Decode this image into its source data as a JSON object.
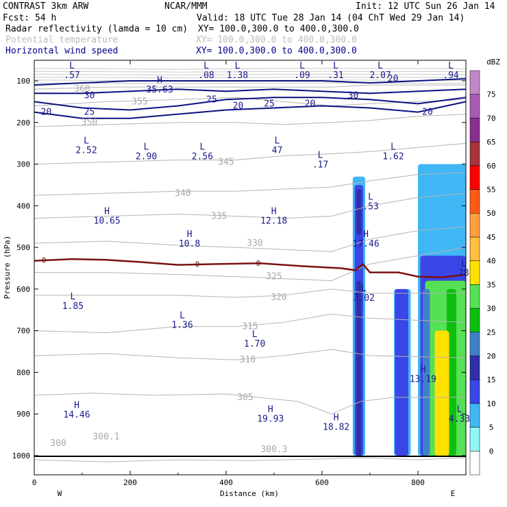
{
  "header": {
    "model": "CONTRAST  3km ARW",
    "org": "NCAR/MMM",
    "init": "Init: 12 UTC Sun 26 Jan 14",
    "fcst": "Fcst:   54 h",
    "valid": "Valid: 18 UTC Tue 28 Jan 14 (04 ChT Wed 29 Jan 14)",
    "fields": [
      {
        "name": "Radar reflectivity (lamda = 10 cm)",
        "xy": "XY= 100.0,300.0 to 400.0,300.0",
        "color": "#000000"
      },
      {
        "name": "Potential temperature",
        "xy": "XY= 100.0,300.0 to 400.0,300.0",
        "color": "#bbbbbb"
      },
      {
        "name": "Horizontal wind speed",
        "xy": "XY= 100.0,300.0 to 400.0,300.0",
        "color": "#00008b"
      }
    ]
  },
  "chart_data": {
    "type": "cross-section",
    "xlabel": "Distance (km)",
    "ylabel": "Pressure (hPa)",
    "xlim": [
      0,
      900
    ],
    "ylim": [
      1050,
      50
    ],
    "xticks": [
      0,
      200,
      400,
      600,
      800
    ],
    "yticks": [
      100,
      200,
      300,
      400,
      500,
      600,
      700,
      800,
      900,
      1000
    ],
    "x_end_labels": {
      "left": "W",
      "right": "E"
    },
    "colorbar": {
      "title": "dBZ",
      "levels": [
        0,
        5,
        10,
        15,
        20,
        25,
        30,
        35,
        40,
        45,
        50,
        55,
        60,
        65,
        70,
        75
      ],
      "colors": [
        "#ffffff",
        "#8ff7f7",
        "#41b6f5",
        "#3a46e5",
        "#2f2fa6",
        "#3f80c8",
        "#0cbf0c",
        "#55e055",
        "#ffe100",
        "#ffc040",
        "#ffa040",
        "#ff5a1a",
        "#ff0000",
        "#a8343c",
        "#8a2f90",
        "#a85ab2",
        "#bf88c8"
      ]
    },
    "theta_contours": [
      {
        "value": 300,
        "points": [
          [
            0,
            1010
          ],
          [
            150,
            1015
          ],
          [
            300,
            1010
          ],
          [
            450,
            1012
          ],
          [
            600,
            1008
          ],
          [
            690,
            1005
          ],
          [
            800,
            1010
          ],
          [
            900,
            1005
          ]
        ]
      },
      {
        "value": 305,
        "points": [
          [
            0,
            855
          ],
          [
            120,
            850
          ],
          [
            250,
            855
          ],
          [
            400,
            852
          ],
          [
            550,
            870
          ],
          [
            620,
            900
          ],
          [
            680,
            870
          ],
          [
            750,
            860
          ],
          [
            900,
            860
          ]
        ]
      },
      {
        "value": 310,
        "points": [
          [
            0,
            760
          ],
          [
            150,
            755
          ],
          [
            300,
            765
          ],
          [
            420,
            770
          ],
          [
            520,
            760
          ],
          [
            620,
            745
          ],
          [
            700,
            760
          ],
          [
            900,
            765
          ]
        ]
      },
      {
        "value": 315,
        "points": [
          [
            0,
            700
          ],
          [
            150,
            705
          ],
          [
            300,
            690
          ],
          [
            420,
            690
          ],
          [
            520,
            680
          ],
          [
            620,
            660
          ],
          [
            700,
            670
          ],
          [
            900,
            680
          ]
        ]
      },
      {
        "value": 320,
        "points": [
          [
            0,
            615
          ],
          [
            150,
            615
          ],
          [
            300,
            615
          ],
          [
            420,
            620
          ],
          [
            520,
            615
          ],
          [
            620,
            600
          ],
          [
            700,
            610
          ],
          [
            900,
            610
          ]
        ]
      },
      {
        "value": 325,
        "points": [
          [
            0,
            560
          ],
          [
            150,
            560
          ],
          [
            300,
            565
          ],
          [
            420,
            570
          ],
          [
            520,
            575
          ],
          [
            620,
            580
          ],
          [
            700,
            540
          ],
          [
            800,
            520
          ],
          [
            900,
            500
          ]
        ]
      },
      {
        "value": 330,
        "points": [
          [
            0,
            490
          ],
          [
            150,
            485
          ],
          [
            300,
            495
          ],
          [
            420,
            500
          ],
          [
            520,
            505
          ],
          [
            620,
            510
          ],
          [
            700,
            480
          ],
          [
            800,
            460
          ],
          [
            900,
            450
          ]
        ]
      },
      {
        "value": 335,
        "points": [
          [
            0,
            430
          ],
          [
            150,
            425
          ],
          [
            300,
            420
          ],
          [
            420,
            425
          ],
          [
            520,
            430
          ],
          [
            620,
            425
          ],
          [
            700,
            400
          ],
          [
            800,
            380
          ],
          [
            900,
            370
          ]
        ]
      },
      {
        "value": 340,
        "points": [
          [
            0,
            375
          ],
          [
            150,
            370
          ],
          [
            300,
            365
          ],
          [
            420,
            365
          ],
          [
            520,
            360
          ],
          [
            620,
            355
          ],
          [
            700,
            340
          ],
          [
            800,
            325
          ],
          [
            900,
            320
          ]
        ]
      },
      {
        "value": 345,
        "points": [
          [
            0,
            300
          ],
          [
            150,
            295
          ],
          [
            300,
            290
          ],
          [
            420,
            290
          ],
          [
            520,
            280
          ],
          [
            620,
            275
          ],
          [
            700,
            270
          ],
          [
            800,
            260
          ],
          [
            900,
            250
          ]
        ]
      },
      {
        "value": 350,
        "points": [
          [
            0,
            210
          ],
          [
            150,
            205
          ],
          [
            300,
            200
          ],
          [
            420,
            200
          ],
          [
            520,
            205
          ],
          [
            620,
            200
          ],
          [
            700,
            195
          ],
          [
            800,
            185
          ],
          [
            900,
            180
          ]
        ]
      },
      {
        "value": 355,
        "points": [
          [
            0,
            160
          ],
          [
            150,
            150
          ],
          [
            300,
            145
          ],
          [
            420,
            140
          ],
          [
            520,
            150
          ],
          [
            620,
            160
          ],
          [
            700,
            155
          ],
          [
            800,
            150
          ],
          [
            900,
            145
          ]
        ]
      },
      {
        "value": 360,
        "points": [
          [
            0,
            120
          ],
          [
            150,
            115
          ],
          [
            300,
            115
          ],
          [
            420,
            115
          ],
          [
            520,
            115
          ],
          [
            620,
            115
          ],
          [
            700,
            110
          ],
          [
            800,
            110
          ],
          [
            900,
            110
          ]
        ]
      }
    ],
    "wind_contours": [
      {
        "value": 20,
        "points": [
          [
            0,
            175
          ],
          [
            100,
            190
          ],
          [
            200,
            190
          ],
          [
            300,
            180
          ],
          [
            400,
            170
          ],
          [
            500,
            165
          ],
          [
            600,
            160
          ],
          [
            700,
            165
          ],
          [
            800,
            175
          ],
          [
            900,
            150
          ]
        ]
      },
      {
        "value": 25,
        "points": [
          [
            0,
            150
          ],
          [
            100,
            165
          ],
          [
            200,
            170
          ],
          [
            300,
            160
          ],
          [
            400,
            145
          ],
          [
            500,
            140
          ],
          [
            600,
            140
          ],
          [
            700,
            145
          ],
          [
            800,
            155
          ],
          [
            900,
            140
          ]
        ]
      },
      {
        "value": 30,
        "points": [
          [
            0,
            130
          ],
          [
            100,
            130
          ],
          [
            200,
            125
          ],
          [
            300,
            120
          ],
          [
            400,
            125
          ],
          [
            500,
            120
          ],
          [
            600,
            125
          ],
          [
            700,
            130
          ],
          [
            800,
            125
          ],
          [
            900,
            120
          ]
        ]
      },
      {
        "value": 35,
        "points": [
          [
            0,
            110
          ],
          [
            100,
            105
          ],
          [
            200,
            100
          ],
          [
            300,
            100
          ],
          [
            400,
            100
          ],
          [
            500,
            100
          ],
          [
            600,
            100
          ],
          [
            700,
            105
          ],
          [
            800,
            100
          ],
          [
            900,
            95
          ]
        ]
      }
    ],
    "zero_line": [
      [
        0,
        532
      ],
      [
        80,
        528
      ],
      [
        150,
        530
      ],
      [
        220,
        535
      ],
      [
        300,
        542
      ],
      [
        380,
        540
      ],
      [
        470,
        538
      ],
      [
        560,
        545
      ],
      [
        640,
        550
      ],
      [
        670,
        555
      ],
      [
        685,
        540
      ],
      [
        700,
        560
      ],
      [
        760,
        560
      ],
      [
        800,
        570
      ],
      [
        850,
        572
      ],
      [
        900,
        565
      ]
    ],
    "reflectivity_regions": [
      {
        "dbz": 5,
        "x": [
          664,
          690
        ],
        "p": [
          330,
          1000
        ]
      },
      {
        "dbz": 10,
        "x": [
          668,
          686
        ],
        "p": [
          350,
          1000
        ]
      },
      {
        "dbz": 15,
        "x": [
          672,
          682
        ],
        "p": [
          360,
          470
        ]
      },
      {
        "dbz": 15,
        "x": [
          672,
          682
        ],
        "p": [
          580,
          1000
        ]
      },
      {
        "dbz": 5,
        "x": [
          750,
          785
        ],
        "p": [
          600,
          1000
        ]
      },
      {
        "dbz": 10,
        "x": [
          752,
          780
        ],
        "p": [
          600,
          1000
        ]
      },
      {
        "dbz": 5,
        "x": [
          800,
          900
        ],
        "p": [
          300,
          1000
        ]
      },
      {
        "dbz": 10,
        "x": [
          805,
          900
        ],
        "p": [
          520,
          1000
        ]
      },
      {
        "dbz": 30,
        "x": [
          815,
          900
        ],
        "p": [
          580,
          1000
        ]
      },
      {
        "dbz": 20,
        "x": [
          810,
          825
        ],
        "p": [
          600,
          1000
        ]
      },
      {
        "dbz": 25,
        "x": [
          860,
          880
        ],
        "p": [
          600,
          1000
        ]
      },
      {
        "dbz": 35,
        "x": [
          835,
          865
        ],
        "p": [
          700,
          1000
        ]
      }
    ],
    "extrema_labels": [
      {
        "kind": "L",
        "value": ".57",
        "x": 50,
        "p": 90
      },
      {
        "kind": "L",
        "value": ".08",
        "x": 330,
        "p": 90
      },
      {
        "kind": "L",
        "value": "1.38",
        "x": 395,
        "p": 90
      },
      {
        "kind": "L",
        "value": ".09",
        "x": 530,
        "p": 90
      },
      {
        "kind": "L",
        "value": ".31",
        "x": 600,
        "p": 90
      },
      {
        "kind": "L",
        "value": "2.07",
        "x": 693,
        "p": 90
      },
      {
        "kind": "L",
        "value": ".94",
        "x": 840,
        "p": 90
      },
      {
        "kind": "H",
        "value": "35.63",
        "x": 233,
        "p": 125
      },
      {
        "kind": "L",
        "value": "2.52",
        "x": 80,
        "p": 270
      },
      {
        "kind": "L",
        "value": "2.90",
        "x": 205,
        "p": 285
      },
      {
        "kind": "L",
        "value": "2.56",
        "x": 322,
        "p": 285
      },
      {
        "kind": "L",
        "value": "47",
        "x": 478,
        "p": 270
      },
      {
        "kind": "L",
        "value": ".17",
        "x": 568,
        "p": 305
      },
      {
        "kind": "L",
        "value": "1.62",
        "x": 720,
        "p": 285
      },
      {
        "kind": "L",
        "value": ".53",
        "x": 673,
        "p": 405
      },
      {
        "kind": "H",
        "value": "10.65",
        "x": 123,
        "p": 440
      },
      {
        "kind": "H",
        "value": "12.18",
        "x": 471,
        "p": 440
      },
      {
        "kind": "H",
        "value": "10.8",
        "x": 295,
        "p": 495
      },
      {
        "kind": "H",
        "value": "17.46",
        "x": 663,
        "p": 495
      },
      {
        "kind": "L",
        "value": "28",
        "x": 867,
        "p": 565
      },
      {
        "kind": "L",
        "value": "3.02",
        "x": 659,
        "p": 625
      },
      {
        "kind": "L",
        "value": "1.85",
        "x": 52,
        "p": 645
      },
      {
        "kind": "L",
        "value": "1.36",
        "x": 280,
        "p": 690
      },
      {
        "kind": "L",
        "value": "1.70",
        "x": 431,
        "p": 735
      },
      {
        "kind": "H",
        "value": "13.19",
        "x": 782,
        "p": 820
      },
      {
        "kind": "H",
        "value": "14.46",
        "x": 60,
        "p": 905
      },
      {
        "kind": "H",
        "value": "19.93",
        "x": 464,
        "p": 915
      },
      {
        "kind": "H",
        "value": "18.82",
        "x": 601,
        "p": 935
      },
      {
        "kind": "L",
        "value": "4.33",
        "x": 858,
        "p": 915
      }
    ],
    "theta_labels": [
      {
        "value": "360",
        "x": 100,
        "p": 120
      },
      {
        "value": "355",
        "x": 220,
        "p": 150
      },
      {
        "value": "350",
        "x": 115,
        "p": 200
      },
      {
        "value": "345",
        "x": 400,
        "p": 295
      },
      {
        "value": "340",
        "x": 310,
        "p": 370
      },
      {
        "value": "335",
        "x": 385,
        "p": 425
      },
      {
        "value": "330",
        "x": 460,
        "p": 490
      },
      {
        "value": "325",
        "x": 500,
        "p": 570
      },
      {
        "value": "320",
        "x": 510,
        "p": 620
      },
      {
        "value": "315",
        "x": 450,
        "p": 690
      },
      {
        "value": "310",
        "x": 445,
        "p": 770
      },
      {
        "value": "305",
        "x": 440,
        "p": 860
      },
      {
        "value": "300.1",
        "x": 150,
        "p": 955
      },
      {
        "value": "300.3",
        "x": 500,
        "p": 985
      },
      {
        "value": "300",
        "x": 50,
        "p": 970
      }
    ],
    "wind_labels": [
      {
        "value": "30",
        "x": 115,
        "p": 135
      },
      {
        "value": "25",
        "x": 115,
        "p": 175
      },
      {
        "value": "20",
        "x": 25,
        "p": 175
      },
      {
        "value": "25",
        "x": 370,
        "p": 145
      },
      {
        "value": "20",
        "x": 425,
        "p": 160
      },
      {
        "value": "25",
        "x": 490,
        "p": 155
      },
      {
        "value": "20",
        "x": 575,
        "p": 155
      },
      {
        "value": "30",
        "x": 665,
        "p": 135
      },
      {
        "value": "20",
        "x": 820,
        "p": 175
      },
      {
        "value": "20",
        "x": 748,
        "p": 95
      }
    ]
  }
}
